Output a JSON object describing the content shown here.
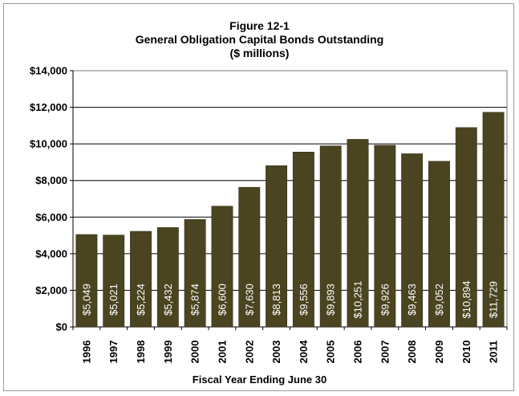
{
  "chart_data": {
    "type": "bar",
    "title": "Figure 12-1",
    "subtitle": "General Obligation Capital Bonds Outstanding",
    "units": "($ millions)",
    "xlabel": "Fiscal Year Ending June 30",
    "ylabel": "",
    "categories": [
      "1996",
      "1997",
      "1998",
      "1999",
      "2000",
      "2001",
      "2002",
      "2003",
      "2004",
      "2005",
      "2006",
      "2007",
      "2008",
      "2009",
      "2010",
      "2011"
    ],
    "values": [
      5049,
      5021,
      5224,
      5432,
      5874,
      6600,
      7630,
      8813,
      9556,
      9893,
      10251,
      9926,
      9463,
      9052,
      10894,
      11729
    ],
    "data_labels": [
      "$5,049",
      "$5,021",
      "$5,224",
      "$5,432",
      "$5,874",
      "$6,600",
      "$7,630",
      "$8,813",
      "$9,556",
      "$9,893",
      "$10,251",
      "$9,926",
      "$9,463",
      "$9,052",
      "$10,894",
      "$11,729"
    ],
    "ylim": [
      0,
      14000
    ],
    "yticks": [
      0,
      2000,
      4000,
      6000,
      8000,
      10000,
      12000,
      14000
    ],
    "ytick_labels": [
      "$0",
      "$2,000",
      "$4,000",
      "$6,000",
      "$8,000",
      "$10,000",
      "$12,000",
      "$14,000"
    ],
    "grid": true,
    "legend": "none",
    "bar_color": "#4a4520"
  }
}
